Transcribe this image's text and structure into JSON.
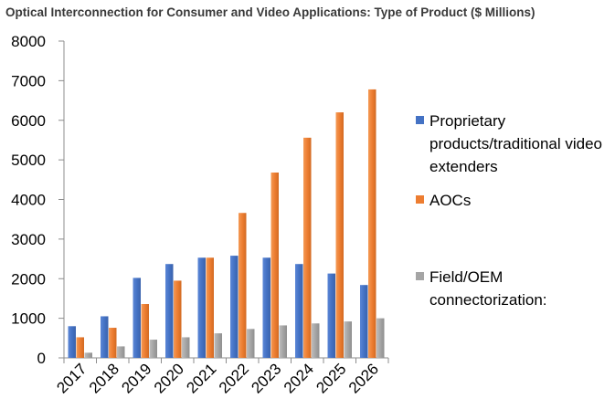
{
  "chart_data": {
    "type": "bar",
    "title": "Optical Interconnection for Consumer and Video Applications:  Type of Product ($ Millions)",
    "categories": [
      "2017",
      "2018",
      "2019",
      "2020",
      "2021",
      "2022",
      "2023",
      "2024",
      "2025",
      "2026"
    ],
    "series": [
      {
        "name": "Proprietary products/traditional video extenders",
        "color": "#4472C4",
        "values": [
          800,
          1050,
          2020,
          2370,
          2530,
          2580,
          2530,
          2370,
          2130,
          1840
        ]
      },
      {
        "name": "AOCs",
        "color": "#ED7D31",
        "values": [
          520,
          760,
          1360,
          1950,
          2530,
          3660,
          4680,
          5560,
          6200,
          6780
        ]
      },
      {
        "name": "Field/OEM connectorization:",
        "color": "#A5A5A5",
        "values": [
          130,
          290,
          460,
          520,
          620,
          730,
          820,
          870,
          920,
          1000
        ]
      }
    ],
    "ylim": [
      0,
      8000
    ],
    "yticks": [
      0,
      1000,
      2000,
      3000,
      4000,
      5000,
      6000,
      7000,
      8000
    ],
    "grid": false,
    "legend": "right"
  }
}
